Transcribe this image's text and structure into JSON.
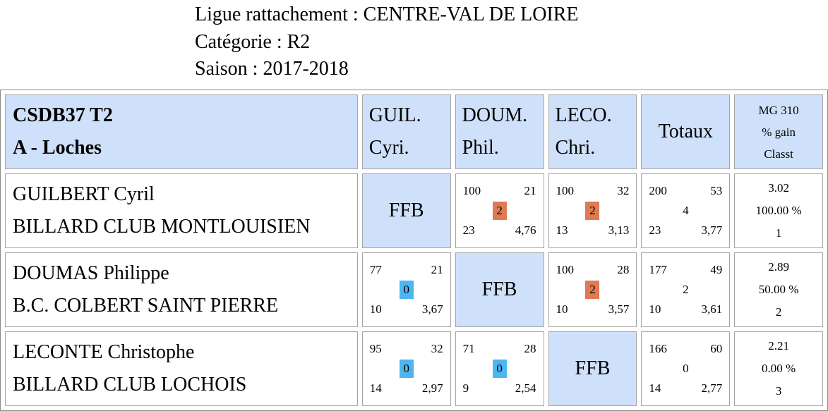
{
  "header": {
    "ligue": "Ligue rattachement : CENTRE-VAL DE LOIRE",
    "categorie": "Catégorie : R2",
    "saison": "Saison : 2017-2018"
  },
  "table_head": {
    "team_line1": "CSDB37 T2",
    "team_line2": "A - Loches",
    "players": [
      {
        "line1": "GUIL.",
        "line2": "Cyri."
      },
      {
        "line1": "DOUM.",
        "line2": "Phil."
      },
      {
        "line1": "LECO.",
        "line2": "Chri."
      }
    ],
    "totals": "Totaux",
    "stats_line1": "MG 310",
    "stats_line2": "% gain",
    "stats_line3": "Classt"
  },
  "ffb_label": "FFB",
  "rows": [
    {
      "name": "GUILBERT Cyril",
      "club": "BILLARD CLUB MONTLOUISIEN",
      "results": [
        null,
        {
          "tl": "100",
          "tr": "21",
          "mid": "2",
          "bl": "23",
          "br": "4,76",
          "outcome": "win"
        },
        {
          "tl": "100",
          "tr": "32",
          "mid": "2",
          "bl": "13",
          "br": "3,13",
          "outcome": "win"
        }
      ],
      "totals": {
        "tl": "200",
        "tr": "53",
        "mid": "4",
        "bl": "23",
        "br": "3,77"
      },
      "stats": {
        "mg": "3.02",
        "gain": "100.00 %",
        "rank": "1"
      }
    },
    {
      "name": "DOUMAS Philippe",
      "club": "B.C. COLBERT SAINT PIERRE",
      "results": [
        {
          "tl": "77",
          "tr": "21",
          "mid": "0",
          "bl": "10",
          "br": "3,67",
          "outcome": "loss"
        },
        null,
        {
          "tl": "100",
          "tr": "28",
          "mid": "2",
          "bl": "10",
          "br": "3,57",
          "outcome": "win"
        }
      ],
      "totals": {
        "tl": "177",
        "tr": "49",
        "mid": "2",
        "bl": "10",
        "br": "3,61"
      },
      "stats": {
        "mg": "2.89",
        "gain": "50.00 %",
        "rank": "2"
      }
    },
    {
      "name": "LECONTE Christophe",
      "club": "BILLARD CLUB LOCHOIS",
      "results": [
        {
          "tl": "95",
          "tr": "32",
          "mid": "0",
          "bl": "14",
          "br": "2,97",
          "outcome": "loss"
        },
        {
          "tl": "71",
          "tr": "28",
          "mid": "0",
          "bl": "9",
          "br": "2,54",
          "outcome": "loss"
        },
        null
      ],
      "totals": {
        "tl": "166",
        "tr": "60",
        "mid": "0",
        "bl": "14",
        "br": "2,77"
      },
      "stats": {
        "mg": "2.21",
        "gain": "0.00 %",
        "rank": "3"
      }
    }
  ],
  "colors": {
    "header_bg": "#cfe0fa",
    "win": "#e07a52",
    "loss": "#4db5ef"
  }
}
